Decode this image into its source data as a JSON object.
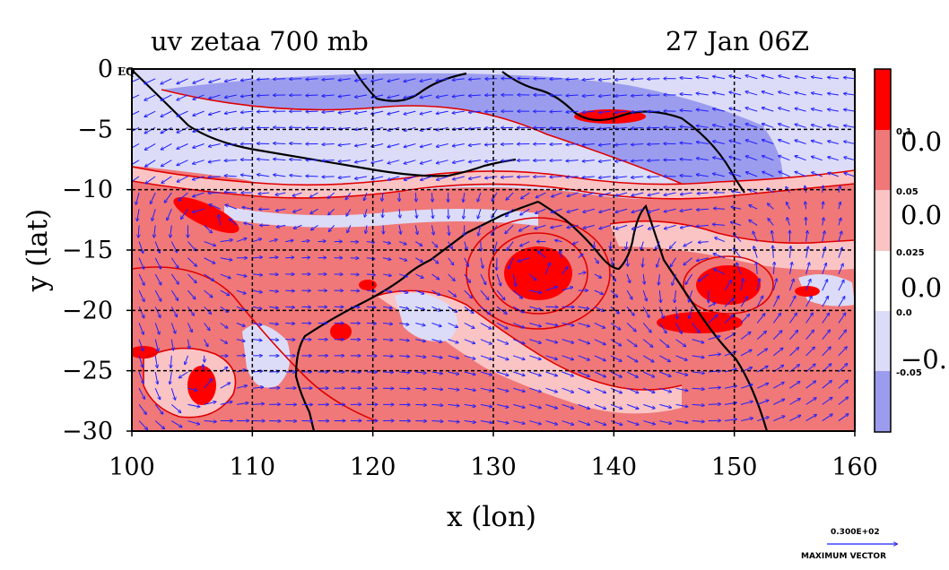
{
  "chart_data": {
    "type": "heatmap",
    "title": "uv zetaa 700 mb",
    "time_label": "27 Jan 06Z",
    "xlabel": "x (lon)",
    "ylabel": "y (lat)",
    "xlim": [
      100,
      160
    ],
    "ylim": [
      -30,
      0
    ],
    "x_ticks": [
      "100",
      "110",
      "120",
      "130",
      "140",
      "150",
      "160"
    ],
    "y_ticks": [
      "0",
      "−5",
      "−10",
      "−15",
      "−20",
      "−25",
      "−30"
    ],
    "grid": true,
    "colorbar": {
      "levels": [
        "0.1",
        "0.05",
        "0.025",
        "0.0",
        "-0.05"
      ],
      "big_labels": [
        "0.0",
        "0.0",
        "0.0",
        "−0."
      ],
      "colors": [
        "#ff0000",
        "#f07878",
        "#fac4c4",
        "#ffffff",
        "#dcdcf8",
        "#9c9cee"
      ]
    },
    "corner_label": "EQ",
    "vector_legend": {
      "magnitude": "0.300E+02",
      "label": "MAXIMUM VECTOR",
      "color": "#1f1fff"
    },
    "colors": {
      "strong_positive": "#ff0000",
      "positive": "#f07878",
      "weak_positive": "#fac4c4",
      "weak_negative": "#dcdcf8",
      "negative": "#9c9cee",
      "coastline": "#000000",
      "contour_line": "#e00000",
      "vectors": "#1f1fff"
    },
    "vortices": [
      {
        "lon": 133,
        "lat": -17,
        "strength": "strong_positive"
      },
      {
        "lon": 149,
        "lat": -18,
        "strength": "strong_positive"
      },
      {
        "lon": 147,
        "lat": -21,
        "strength": "strong_positive"
      },
      {
        "lon": 104.5,
        "lat": -26.5,
        "strength": "strong_positive"
      },
      {
        "lon": 106,
        "lat": -12.5,
        "strength": "strong_positive"
      }
    ]
  }
}
